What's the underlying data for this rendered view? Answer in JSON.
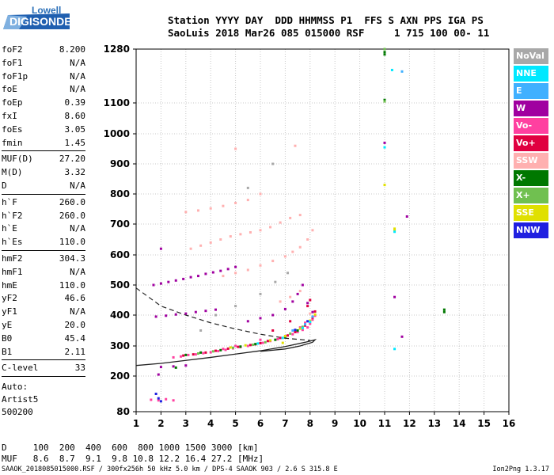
{
  "logo": {
    "top": "Lowell",
    "bottom": "DIGISONDE"
  },
  "header": {
    "line1": "Station YYYY DAY  DDD HHMMSS P1  FFS S AXN PPS IGA PS",
    "line2": "SaoLuis 2018 Mar26 085 015000 RSF     1 715 100 00- 11"
  },
  "params": [
    {
      "name": "foF2",
      "value": "8.200"
    },
    {
      "name": "foF1",
      "value": "N/A"
    },
    {
      "name": "foF1p",
      "value": "N/A"
    },
    {
      "name": "foE",
      "value": "N/A"
    },
    {
      "name": "foEp",
      "value": "0.39"
    },
    {
      "name": "fxI",
      "value": "8.60"
    },
    {
      "name": "foEs",
      "value": "3.05"
    },
    {
      "name": "fmin",
      "value": "1.45"
    },
    {
      "sep": true
    },
    {
      "name": "MUF(D)",
      "value": "27.20"
    },
    {
      "name": "M(D)",
      "value": "3.32"
    },
    {
      "name": "D",
      "value": "N/A"
    },
    {
      "sep": true
    },
    {
      "name": "h`F",
      "value": "260.0"
    },
    {
      "name": "h`F2",
      "value": "260.0"
    },
    {
      "name": "h`E",
      "value": "N/A"
    },
    {
      "name": "h`Es",
      "value": "110.0"
    },
    {
      "sep": true
    },
    {
      "name": "hmF2",
      "value": "304.3"
    },
    {
      "name": "hmF1",
      "value": "N/A"
    },
    {
      "name": "hmE",
      "value": "110.0"
    },
    {
      "name": "yF2",
      "value": "46.6"
    },
    {
      "name": "yF1",
      "value": "N/A"
    },
    {
      "name": "yE",
      "value": "20.0"
    },
    {
      "name": "B0",
      "value": "45.4"
    },
    {
      "name": "B1",
      "value": "2.11"
    },
    {
      "sep": true
    },
    {
      "name": "C-level",
      "value": "33"
    },
    {
      "sep": true
    }
  ],
  "auto": {
    "line1": "Auto:",
    "line2": "Artist5",
    "line3": "500200"
  },
  "legend": [
    {
      "label": "NoVal",
      "color": "#a8a8a8",
      "text_color": "#ffffff"
    },
    {
      "label": "NNE",
      "color": "#00e8ff",
      "text_color": "#ffffff"
    },
    {
      "label": "E",
      "color": "#40b0ff",
      "text_color": "#ffffff"
    },
    {
      "label": "W",
      "color": "#a000a0",
      "text_color": "#ffffff"
    },
    {
      "label": "Vo-",
      "color": "#ff40a0",
      "text_color": "#ffffff"
    },
    {
      "label": "Vo+",
      "color": "#e00040",
      "text_color": "#ffffff"
    },
    {
      "label": "SSW",
      "color": "#ffb0b0",
      "text_color": "#ffffff"
    },
    {
      "label": "X-",
      "color": "#007800",
      "text_color": "#ffffff"
    },
    {
      "label": "X+",
      "color": "#70c050",
      "text_color": "#ffffff"
    },
    {
      "label": "SSE",
      "color": "#e0e000",
      "text_color": "#ffffff"
    },
    {
      "label": "NNW",
      "color": "#2020e0",
      "text_color": "#ffffff"
    }
  ],
  "footer": {
    "line1": "D     100  200  400  600  800 1000 1500 3000 [km]",
    "line2": "MUF   8.6  8.7  9.1  9.8 10.8 12.2 16.4 27.2 [MHz]",
    "line3": "SAAOK_2018085015000.RSF / 300fx256h 50 kHz 5.0 km / DPS-4 SAAOK 903 / 2.6 S 315.8 E",
    "version": "Ion2Png 1.3.17"
  },
  "chart_data": {
    "type": "scatter",
    "title": "",
    "xlabel": "",
    "ylabel": "",
    "x_ticks": [
      "1",
      "2",
      "3",
      "4",
      "5",
      "6",
      "7",
      "8",
      "9",
      "10",
      "11",
      "12",
      "13",
      "14",
      "15",
      "16"
    ],
    "y_ticks": [
      "80",
      "200",
      "300",
      "400",
      "500",
      "600",
      "700",
      "800",
      "900",
      "1000",
      "1100",
      "1280"
    ],
    "xlim": [
      1,
      16
    ],
    "ylim": [
      80,
      1280
    ],
    "grid": true,
    "series": [
      {
        "name": "Vo-",
        "color": "#ff40a0",
        "points": [
          [
            2.5,
            262
          ],
          [
            2.8,
            265
          ],
          [
            3.1,
            270
          ],
          [
            3.4,
            272
          ],
          [
            3.7,
            276
          ],
          [
            4.0,
            279
          ],
          [
            4.3,
            283
          ],
          [
            4.6,
            287
          ],
          [
            4.9,
            292
          ],
          [
            5.2,
            296
          ],
          [
            5.5,
            300
          ],
          [
            5.8,
            305
          ],
          [
            6.1,
            310
          ],
          [
            6.4,
            316
          ],
          [
            6.7,
            322
          ],
          [
            7.0,
            330
          ],
          [
            7.3,
            338
          ],
          [
            7.5,
            345
          ],
          [
            7.7,
            352
          ],
          [
            7.9,
            360
          ],
          [
            8.0,
            372
          ],
          [
            8.1,
            385
          ],
          [
            8.2,
            398
          ],
          [
            6.0,
            320
          ],
          [
            5.0,
            300
          ],
          [
            4.5,
            290
          ],
          [
            7.6,
            360
          ],
          [
            7.8,
            375
          ],
          [
            1.6,
            120
          ],
          [
            1.9,
            118
          ],
          [
            2.2,
            122
          ],
          [
            2.5,
            118
          ]
        ]
      },
      {
        "name": "Vo+",
        "color": "#e00040",
        "points": [
          [
            2.9,
            268
          ],
          [
            3.3,
            272
          ],
          [
            3.8,
            278
          ],
          [
            4.2,
            284
          ],
          [
            4.7,
            291
          ],
          [
            5.1,
            297
          ],
          [
            5.6,
            303
          ],
          [
            6.0,
            309
          ],
          [
            6.3,
            316
          ],
          [
            6.8,
            326
          ],
          [
            7.1,
            334
          ],
          [
            7.4,
            345
          ],
          [
            7.8,
            366
          ],
          [
            8.1,
            392
          ],
          [
            8.2,
            412
          ],
          [
            7.9,
            430
          ],
          [
            8.0,
            450
          ],
          [
            7.2,
            380
          ],
          [
            6.5,
            350
          ]
        ]
      },
      {
        "name": "W",
        "color": "#a000a0",
        "points": [
          [
            1.7,
            500
          ],
          [
            2.0,
            505
          ],
          [
            2.3,
            510
          ],
          [
            2.6,
            515
          ],
          [
            2.9,
            520
          ],
          [
            3.2,
            526
          ],
          [
            3.5,
            530
          ],
          [
            3.8,
            537
          ],
          [
            4.1,
            542
          ],
          [
            4.4,
            547
          ],
          [
            4.7,
            553
          ],
          [
            5.0,
            560
          ],
          [
            1.8,
            395
          ],
          [
            2.2,
            398
          ],
          [
            2.6,
            402
          ],
          [
            3.0,
            405
          ],
          [
            3.4,
            410
          ],
          [
            3.8,
            414
          ],
          [
            4.2,
            418
          ],
          [
            5.5,
            380
          ],
          [
            6.0,
            390
          ],
          [
            6.5,
            400
          ],
          [
            7.0,
            420
          ],
          [
            7.3,
            445
          ],
          [
            7.5,
            470
          ],
          [
            7.7,
            500
          ],
          [
            7.9,
            440
          ],
          [
            8.1,
            410
          ],
          [
            2.0,
            230
          ],
          [
            2.5,
            232
          ],
          [
            3.0,
            235
          ],
          [
            2.0,
            620
          ],
          [
            11.9,
            725
          ],
          [
            11.7,
            330
          ],
          [
            11.4,
            460
          ],
          [
            11.0,
            970
          ],
          [
            1.9,
            205
          ]
        ]
      },
      {
        "name": "SSW",
        "color": "#ffb0b0",
        "points": [
          [
            3.2,
            620
          ],
          [
            3.6,
            630
          ],
          [
            4.0,
            640
          ],
          [
            4.4,
            650
          ],
          [
            4.8,
            660
          ],
          [
            5.2,
            667
          ],
          [
            5.6,
            673
          ],
          [
            6.0,
            680
          ],
          [
            6.4,
            690
          ],
          [
            6.8,
            705
          ],
          [
            7.2,
            720
          ],
          [
            7.6,
            730
          ],
          [
            3.0,
            740
          ],
          [
            3.5,
            745
          ],
          [
            4.0,
            752
          ],
          [
            4.5,
            760
          ],
          [
            5.0,
            770
          ],
          [
            5.5,
            780
          ],
          [
            6.0,
            800
          ],
          [
            4.5,
            530
          ],
          [
            5.0,
            540
          ],
          [
            5.5,
            550
          ],
          [
            6.0,
            565
          ],
          [
            6.5,
            580
          ],
          [
            7.0,
            595
          ],
          [
            7.3,
            610
          ],
          [
            7.6,
            625
          ],
          [
            7.9,
            650
          ],
          [
            8.1,
            680
          ],
          [
            6.8,
            445
          ],
          [
            7.2,
            460
          ],
          [
            7.6,
            480
          ],
          [
            8.0,
            405
          ],
          [
            5.0,
            950
          ],
          [
            7.4,
            960
          ]
        ]
      },
      {
        "name": "X-",
        "color": "#007800",
        "points": [
          [
            3.0,
            270
          ],
          [
            3.6,
            278
          ],
          [
            4.4,
            286
          ],
          [
            5.2,
            298
          ],
          [
            5.8,
            306
          ],
          [
            6.6,
            320
          ],
          [
            7.0,
            330
          ],
          [
            7.5,
            350
          ],
          [
            2.6,
            228
          ],
          [
            13.4,
            418
          ],
          [
            13.4,
            410
          ],
          [
            11.0,
            1110
          ],
          [
            11.0,
            1270
          ],
          [
            11.0,
            1262
          ]
        ]
      },
      {
        "name": "X+",
        "color": "#70c050",
        "points": [
          [
            3.5,
            275
          ],
          [
            4.1,
            282
          ],
          [
            4.9,
            294
          ],
          [
            5.7,
            304
          ],
          [
            6.2,
            312
          ],
          [
            7.2,
            340
          ],
          [
            7.7,
            362
          ],
          [
            11.0,
            1105
          ],
          [
            11.0,
            1280
          ]
        ]
      },
      {
        "name": "SSE",
        "color": "#e0e000",
        "points": [
          [
            4.8,
            295
          ],
          [
            5.4,
            302
          ],
          [
            6.4,
            318
          ],
          [
            7.0,
            332
          ],
          [
            7.6,
            356
          ],
          [
            8.0,
            382
          ],
          [
            8.2,
            402
          ],
          [
            6.9,
            310
          ],
          [
            11.0,
            830
          ],
          [
            11.4,
            685
          ],
          [
            11.4,
            680
          ]
        ]
      },
      {
        "name": "NNE",
        "color": "#00e8ff",
        "points": [
          [
            5.9,
            308
          ],
          [
            6.9,
            326
          ],
          [
            7.7,
            358
          ],
          [
            8.0,
            378
          ],
          [
            11.4,
            675
          ],
          [
            11.4,
            290
          ],
          [
            11.3,
            1210
          ],
          [
            11.0,
            955
          ]
        ]
      },
      {
        "name": "E",
        "color": "#40b0ff",
        "points": [
          [
            7.3,
            350
          ],
          [
            7.8,
            370
          ],
          [
            8.1,
            395
          ],
          [
            11.7,
            1205
          ]
        ]
      },
      {
        "name": "NNW",
        "color": "#2020e0",
        "points": [
          [
            1.8,
            140
          ],
          [
            1.9,
            125
          ],
          [
            2.0,
            115
          ],
          [
            7.4,
            352
          ],
          [
            7.9,
            380
          ]
        ]
      },
      {
        "name": "NoVal",
        "color": "#a8a8a8",
        "points": [
          [
            3.6,
            350
          ],
          [
            4.2,
            400
          ],
          [
            5.0,
            430
          ],
          [
            6.0,
            470
          ],
          [
            6.6,
            510
          ],
          [
            7.1,
            540
          ],
          [
            5.5,
            820
          ],
          [
            6.5,
            900
          ]
        ]
      }
    ],
    "profile_solid": [
      [
        1,
        235
      ],
      [
        2,
        242
      ],
      [
        3,
        252
      ],
      [
        4,
        262
      ],
      [
        5,
        273
      ],
      [
        6,
        284
      ],
      [
        7,
        298
      ],
      [
        7.8,
        312
      ],
      [
        8.2,
        320
      ],
      [
        8.1,
        312
      ],
      [
        7.6,
        300
      ],
      [
        7.0,
        290
      ],
      [
        6.0,
        282
      ]
    ],
    "profile_dashed": [
      [
        1,
        490
      ],
      [
        1.5,
        460
      ],
      [
        2,
        430
      ],
      [
        3,
        400
      ],
      [
        4,
        375
      ],
      [
        5,
        355
      ],
      [
        6,
        338
      ],
      [
        7,
        325
      ],
      [
        8,
        318
      ]
    ]
  }
}
